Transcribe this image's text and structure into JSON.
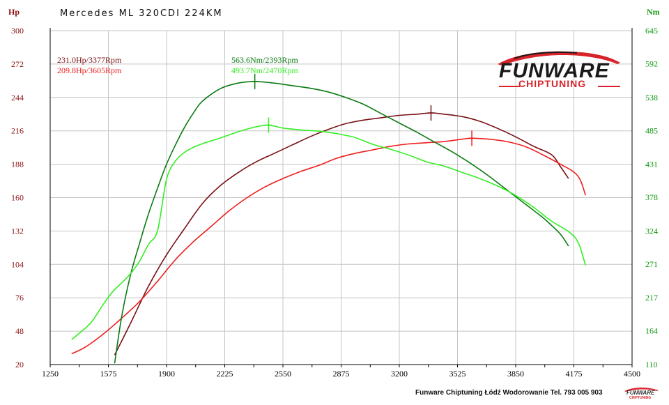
{
  "header": {
    "title": "Mercedes ML 320CDI 224KM",
    "left_unit": "Hp",
    "right_unit": "Nm"
  },
  "annotations": {
    "hp_tuned": "231.0Hp/3377Rpm",
    "hp_stock": "209.8Hp/3605Rpm",
    "nm_tuned": "563.6Nm/2393Rpm",
    "nm_stock": "493.7Nm/2470Rpm"
  },
  "logo": {
    "word": "FUNWARE",
    "sub": "CHIPTUNING"
  },
  "footer": {
    "text": "Funware Chiptuning Łódź Wodorowanie Tel. 793 005 903"
  },
  "colors": {
    "hp_tuned": "#7a0f14",
    "hp_stock": "#ee1c1c",
    "nm_tuned": "#0b7a12",
    "nm_stock": "#33ee22",
    "left_axis": "#8b1111",
    "right_axis": "#119911",
    "grid": "#c4c4c4"
  },
  "chart_data": {
    "type": "line",
    "xlabel": "",
    "ylabel": "Hp",
    "ylabel_right": "Nm",
    "xlim": [
      1250,
      4500
    ],
    "ylim": [
      20,
      300
    ],
    "ylim_right": [
      110,
      645
    ],
    "x_ticks": [
      1250,
      1575,
      1900,
      2225,
      2550,
      2875,
      3200,
      3525,
      3850,
      4175,
      4500
    ],
    "y_ticks": [
      20,
      48,
      76,
      104,
      132,
      160,
      188,
      216,
      244,
      272,
      300
    ],
    "y_ticks_right": [
      110,
      164,
      217,
      271,
      324,
      378,
      431,
      485,
      538,
      592,
      645
    ],
    "grid": true,
    "series": [
      {
        "name": "231.0Hp/3377Rpm",
        "axis": "left",
        "marker": [
          3377,
          231.0
        ],
        "points": [
          [
            1610,
            28
          ],
          [
            1700,
            55
          ],
          [
            1800,
            86
          ],
          [
            1900,
            112
          ],
          [
            2000,
            134
          ],
          [
            2100,
            155
          ],
          [
            2200,
            170
          ],
          [
            2300,
            181
          ],
          [
            2400,
            190
          ],
          [
            2500,
            197
          ],
          [
            2600,
            204
          ],
          [
            2700,
            211
          ],
          [
            2800,
            217
          ],
          [
            2900,
            222
          ],
          [
            3000,
            225
          ],
          [
            3100,
            227
          ],
          [
            3200,
            229
          ],
          [
            3300,
            230
          ],
          [
            3377,
            231
          ],
          [
            3450,
            230
          ],
          [
            3550,
            228
          ],
          [
            3650,
            224
          ],
          [
            3750,
            218
          ],
          [
            3850,
            211
          ],
          [
            3950,
            203
          ],
          [
            4050,
            196
          ],
          [
            4100,
            186
          ],
          [
            4145,
            176
          ]
        ]
      },
      {
        "name": "209.8Hp/3605Rpm",
        "axis": "left",
        "marker": [
          3605,
          209.8
        ],
        "points": [
          [
            1370,
            29
          ],
          [
            1450,
            35
          ],
          [
            1550,
            46
          ],
          [
            1650,
            59
          ],
          [
            1750,
            73
          ],
          [
            1850,
            90
          ],
          [
            1950,
            108
          ],
          [
            2050,
            123
          ],
          [
            2150,
            136
          ],
          [
            2250,
            149
          ],
          [
            2350,
            160
          ],
          [
            2450,
            169
          ],
          [
            2550,
            176
          ],
          [
            2650,
            182
          ],
          [
            2750,
            187
          ],
          [
            2850,
            193
          ],
          [
            2950,
            197
          ],
          [
            3050,
            200
          ],
          [
            3150,
            203
          ],
          [
            3250,
            205
          ],
          [
            3350,
            206
          ],
          [
            3450,
            207
          ],
          [
            3550,
            209
          ],
          [
            3605,
            209.8
          ],
          [
            3700,
            209
          ],
          [
            3800,
            207
          ],
          [
            3900,
            203
          ],
          [
            4000,
            196
          ],
          [
            4100,
            188
          ],
          [
            4170,
            182
          ],
          [
            4210,
            175
          ],
          [
            4240,
            162
          ]
        ]
      },
      {
        "name": "563.6Nm/2393Rpm",
        "axis": "right",
        "marker": [
          2393,
          563.6
        ],
        "points": [
          [
            1610,
            112
          ],
          [
            1650,
            188
          ],
          [
            1700,
            255
          ],
          [
            1750,
            305
          ],
          [
            1800,
            352
          ],
          [
            1850,
            393
          ],
          [
            1900,
            431
          ],
          [
            1950,
            462
          ],
          [
            2000,
            490
          ],
          [
            2050,
            513
          ],
          [
            2100,
            532
          ],
          [
            2200,
            552
          ],
          [
            2300,
            561
          ],
          [
            2393,
            563.6
          ],
          [
            2500,
            561
          ],
          [
            2600,
            557
          ],
          [
            2700,
            553
          ],
          [
            2800,
            547
          ],
          [
            2900,
            538
          ],
          [
            3000,
            527
          ],
          [
            3100,
            512
          ],
          [
            3200,
            497
          ],
          [
            3300,
            482
          ],
          [
            3400,
            466
          ],
          [
            3500,
            450
          ],
          [
            3600,
            432
          ],
          [
            3700,
            412
          ],
          [
            3800,
            390
          ],
          [
            3900,
            368
          ],
          [
            4000,
            346
          ],
          [
            4050,
            333
          ],
          [
            4100,
            319
          ],
          [
            4145,
            300
          ]
        ]
      },
      {
        "name": "493.7Nm/2470Rpm",
        "axis": "right",
        "marker": [
          2470,
          493.7
        ],
        "points": [
          [
            1370,
            150
          ],
          [
            1420,
            162
          ],
          [
            1480,
            178
          ],
          [
            1550,
            208
          ],
          [
            1600,
            227
          ],
          [
            1650,
            241
          ],
          [
            1700,
            256
          ],
          [
            1750,
            276
          ],
          [
            1800,
            303
          ],
          [
            1850,
            325
          ],
          [
            1900,
            407
          ],
          [
            1950,
            436
          ],
          [
            2000,
            450
          ],
          [
            2050,
            458
          ],
          [
            2100,
            464
          ],
          [
            2200,
            473
          ],
          [
            2300,
            483
          ],
          [
            2400,
            491
          ],
          [
            2470,
            493.7
          ],
          [
            2550,
            489
          ],
          [
            2650,
            486
          ],
          [
            2750,
            484
          ],
          [
            2850,
            480
          ],
          [
            2950,
            474
          ],
          [
            3050,
            463
          ],
          [
            3150,
            455
          ],
          [
            3250,
            446
          ],
          [
            3350,
            435
          ],
          [
            3450,
            428
          ],
          [
            3550,
            418
          ],
          [
            3650,
            408
          ],
          [
            3750,
            396
          ],
          [
            3850,
            381
          ],
          [
            3950,
            362
          ],
          [
            4050,
            340
          ],
          [
            4150,
            322
          ],
          [
            4200,
            305
          ],
          [
            4240,
            269
          ]
        ]
      }
    ]
  }
}
